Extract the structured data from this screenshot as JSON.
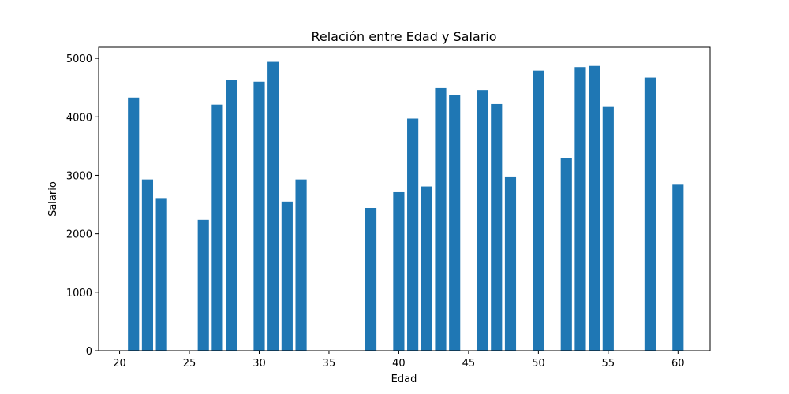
{
  "chart_data": {
    "type": "bar",
    "title": "Relación entre Edad y Salario",
    "xlabel": "Edad",
    "ylabel": "Salario",
    "xlim": [
      18.5,
      62.3
    ],
    "ylim": [
      0,
      5190
    ],
    "xticks": [
      20,
      25,
      30,
      35,
      40,
      45,
      50,
      55,
      60
    ],
    "yticks": [
      0,
      1000,
      2000,
      3000,
      4000,
      5000
    ],
    "bar_width": 0.8,
    "color": "#1f77b4",
    "grid": false,
    "x": [
      21,
      22,
      23,
      26,
      27,
      28,
      30,
      31,
      32,
      33,
      38,
      40,
      41,
      42,
      43,
      44,
      46,
      47,
      48,
      50,
      52,
      53,
      54,
      55,
      58,
      60
    ],
    "values": [
      4330,
      2930,
      2610,
      2240,
      4210,
      4630,
      4600,
      4940,
      2550,
      2930,
      2440,
      2710,
      3970,
      2810,
      4490,
      4370,
      4460,
      4220,
      2980,
      4790,
      3300,
      4850,
      4870,
      4170,
      4670,
      2840
    ]
  }
}
